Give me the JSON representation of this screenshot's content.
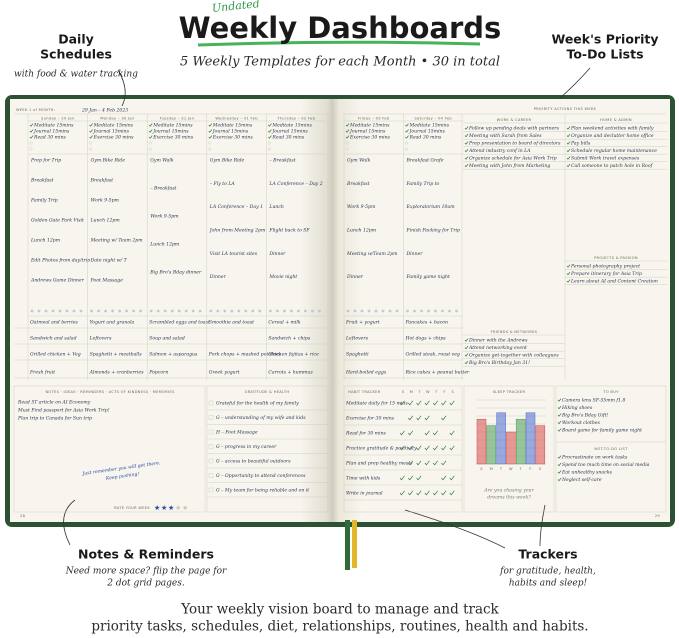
{
  "header": {
    "badge": "Undated",
    "title": "Weekly Dashboards",
    "subtitle": "5 Weekly Templates for each Month • 30 in total"
  },
  "callouts": {
    "schedules": {
      "title": [
        "Daily",
        "Schedules"
      ],
      "note": "with food & water tracking"
    },
    "priority": {
      "title": [
        "Week's Priority",
        "To-Do Lists"
      ]
    },
    "notes": {
      "title": "Notes & Reminders",
      "note": [
        "Need more space? flip the page for",
        "2 dot grid pages."
      ]
    },
    "trackers": {
      "title": "Trackers",
      "note": [
        "for gratitude, health,",
        "habits and sleep!"
      ]
    }
  },
  "footer": [
    "Your weekly vision board to manage and track",
    "priority tasks, schedules, diet, relationships, routines, health and habits."
  ],
  "planner": {
    "week_label": "WEEK 1 of MONTH:",
    "dates": "29 Jan – 4 Feb 2023",
    "days": [
      {
        "name": "Sunday – 29 Jan",
        "tasks": [
          "Meditate 15mins",
          "Journal 15mins",
          "Read 30 mins"
        ],
        "events": [
          "Prep for Trip",
          "Breakfast",
          "Family Trip",
          "Golden Gate Park Visit",
          "Lunch 12pm",
          "Edit Photos from day/trip",
          "Andrews Game Dinner"
        ],
        "meals": [
          "Oatmeal and berries",
          "Sandwich and salad",
          "Grilled chicken + Veg",
          "Fresh fruit"
        ]
      },
      {
        "name": "Monday – 30 Jan",
        "tasks": [
          "Meditate 15mins",
          "Journal 15mins",
          "Exercise 30 mins"
        ],
        "events": [
          "Gym Bike Ride",
          "Breakfast",
          "Work 9-5pm",
          "Lunch 12pm",
          "Meeting w/ Team 2pm",
          "Date night w/ T",
          "Foot Massage"
        ],
        "meals": [
          "Yogurt and granola",
          "Leftovers",
          "Spaghetti + meatballs",
          "Almonds + cranberries"
        ]
      },
      {
        "name": "Tuesday – 31 Jan",
        "tasks": [
          "Meditate 15mins",
          "Journal 15mins",
          "Exercise 30 mins"
        ],
        "events": [
          "Gym Walk",
          "– Breakfast",
          "Work 9-5pm",
          "Lunch 12pm",
          "Big Bro's Bday dinner"
        ],
        "meals": [
          "Scrambled eggs and toast",
          "Soup and salad",
          "Salmon + asparagus",
          "Popcorn"
        ]
      },
      {
        "name": "Wednesday – 01 Feb",
        "tasks": [
          "Meditate 15mins",
          "Journal 15mins",
          "Exercise 30 mins"
        ],
        "events": [
          "Gym Bike Ride",
          "– Fly to LA",
          "LA Conference – Day 1",
          "John from Meeting 2pm",
          "Visit LA tourist sites",
          "Dinner"
        ],
        "meals": [
          "Smoothie and toast",
          null,
          "Pork chops + mashed potatoes",
          "Greek yogurt"
        ]
      },
      {
        "name": "Thursday – 02 Feb",
        "tasks": [
          "Meditate 15mins",
          "Journal 15mins",
          "Read 30 mins"
        ],
        "events": [
          "– Breakfast",
          "LA Conference – Day 2",
          "Lunch",
          "Flight back to SF",
          "Dinner",
          "Movie night"
        ],
        "meals": [
          "Cereal + milk",
          "Sandwich + chips",
          "Chicken fajitas + rice",
          "Carrots + hummus"
        ]
      },
      {
        "name": "Friday – 03 Feb",
        "tasks": [
          "Meditate 15mins",
          "Journal 15mins",
          "Exercise 30 mins"
        ],
        "events": [
          "Gym Walk",
          "Breakfast",
          "Work 9-5pm",
          "Lunch 12pm",
          "Meeting w/Team 2pm",
          "Dinner"
        ],
        "meals": [
          "Fruit + yogurt",
          "Leftovers",
          "Spaghetti",
          "Hard-boiled eggs"
        ]
      },
      {
        "name": "Saturday – 04 Feb",
        "tasks": [
          "Meditate 15mins",
          "Journal 15mins",
          "Read 30 mins"
        ],
        "events": [
          "Breakfast Grafe",
          "Family Trip to",
          "Exploratorium 10am",
          "Finish Packing for Trip",
          "Dinner",
          "Family game night"
        ],
        "meals": [
          "Pancakes + bacon",
          "Hot dogs + chips",
          "Grilled steak, roast veg",
          "Rice cakes + peanut butter"
        ]
      }
    ],
    "priority": {
      "title": "PRIORITY ACTIONS THIS WEEK",
      "sections": [
        {
          "name": "WORK & CAREER",
          "items": [
            "Follow up pending deals with partners",
            "Meeting with Sarah from Sales",
            "Prep presentation to board of directors",
            "Attend industry conf in LA",
            "Organize schedule for Asia Work Trip",
            "Meeting with John from Marketing"
          ]
        },
        {
          "name": "HOME & ADMIN",
          "items": [
            "Plan weekend activities with family",
            "Organize and declutter home office",
            "Pay bills",
            "Schedule regular home maintenance",
            "Submit Work travel expenses",
            "Call someone to patch hole in Roof"
          ]
        },
        {
          "name": "PROJECTS & PASSION",
          "items": [
            "Personal photography project",
            "Prepare itinerary for Asia Trip",
            "Learn about AI and Content Creation"
          ]
        },
        {
          "name": "FRIENDS & NETWORKS",
          "items": [
            "Dinner with the Andrews",
            "Attend networking event",
            "Organize get-together with colleagues",
            "Big Bro's Birthday Jan 31!"
          ]
        }
      ]
    },
    "notes": {
      "title": "NOTES · IDEAS · REMINDERS · ACTS OF KINDNESS · MEMORIES",
      "items": [
        "Read 5T article on AI Economy",
        "Must Find passport for Asia Work Trip!",
        "Plan trip to Canada for Sun trip"
      ],
      "message": [
        "Just remember you will get there,",
        "Keep pushing!"
      ],
      "rate_label": "RATE YOUR WEEK"
    },
    "gratitude": {
      "title": "GRATITUDE & HEALTH",
      "items": [
        "Grateful for the health of my family",
        "G – understanding of my wife and kids",
        "H – Foot Massage",
        "G – progress in my career",
        "G – access to beautiful outdoors",
        "G – Opportunity to attend conferences",
        "G – My team for being reliable and on it"
      ]
    },
    "habits": {
      "title": "HABIT TRACKER",
      "weekdays": [
        "S",
        "M",
        "T",
        "W",
        "T",
        "F",
        "S"
      ],
      "items": [
        {
          "name": "Meditate daily for 15 mins",
          "done": [
            true,
            true,
            true,
            true,
            true,
            true,
            true
          ]
        },
        {
          "name": "Exercise for 30 mins",
          "done": [
            false,
            true,
            true,
            true,
            false,
            true,
            false
          ]
        },
        {
          "name": "Read for 30 mins",
          "done": [
            true,
            true,
            false,
            true,
            true,
            false,
            true
          ]
        },
        {
          "name": "Practice gratitude & positivity",
          "done": [
            true,
            true,
            true,
            true,
            true,
            true,
            true
          ]
        },
        {
          "name": "Plan and prep healthy meals",
          "done": [
            false,
            true,
            true,
            true,
            true,
            true,
            false
          ]
        },
        {
          "name": "Time with kids",
          "done": [
            true,
            true,
            true,
            false,
            false,
            true,
            true
          ]
        },
        {
          "name": "Write in journal",
          "done": [
            true,
            true,
            true,
            true,
            true,
            true,
            true
          ]
        }
      ]
    },
    "sleep": {
      "title": "SLEEP TRACKER",
      "ylim": [
        0,
        10
      ],
      "hours": [
        7,
        6,
        8,
        5,
        7,
        8,
        6
      ],
      "caption": [
        "Are you chasing your",
        "dreams this week?"
      ]
    },
    "to_buy": {
      "title": "TO BUY",
      "items": [
        "Camera lens SF-55mm f1.8",
        "Hiking shoes",
        "Big Bro's Bday Gift!",
        "Workout clothes",
        "Board game for family game night"
      ]
    },
    "not_to_do": {
      "title": "NOT-TO-DO LIST",
      "items": [
        "Procrastinate on work tasks",
        "Spend too much time on social media",
        "Eat unhealthy snacks",
        "Neglect self-care"
      ]
    },
    "page_numbers": [
      "28",
      "29"
    ]
  }
}
